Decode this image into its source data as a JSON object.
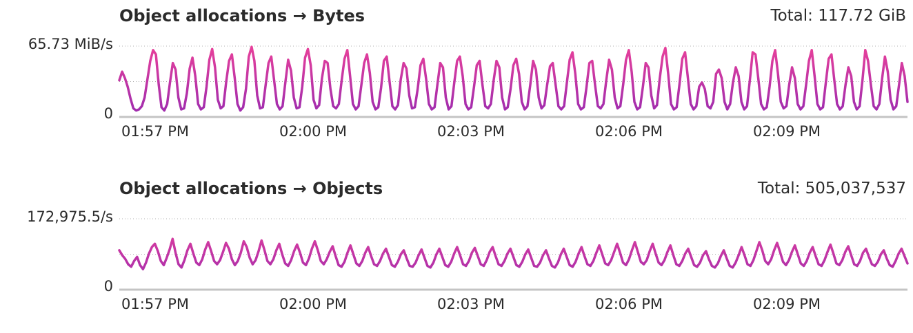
{
  "colors": {
    "line_top": "#e8409a",
    "line_bottom": "#9b2bb0",
    "grid": "#b0b0b0",
    "axis": "#c4c4c4",
    "text": "#2b2b2b"
  },
  "chart_data": [
    {
      "type": "line",
      "title": "Object allocations → Bytes",
      "total_label": "Total: 117.72 GiB",
      "unit": "MiB/s",
      "ymax_label": "65.73 MiB/s",
      "ymin_label": "0",
      "ylim": [
        0,
        65.73
      ],
      "grid": true,
      "x_range": [
        "01:56:30 PM",
        "02:11:30 PM"
      ],
      "x_ticks": [
        "01:57 PM",
        "02:00 PM",
        "02:03 PM",
        "02:06 PM",
        "02:09 PM"
      ],
      "series": [
        {
          "values": [
            34,
            42,
            36,
            28,
            17,
            8,
            6,
            7,
            10,
            18,
            35,
            52,
            62,
            58,
            30,
            9,
            6,
            12,
            32,
            50,
            44,
            18,
            7,
            8,
            22,
            45,
            55,
            38,
            12,
            7,
            9,
            28,
            53,
            63,
            46,
            16,
            8,
            10,
            33,
            52,
            58,
            36,
            12,
            6,
            9,
            26,
            56,
            65,
            52,
            20,
            8,
            9,
            30,
            50,
            56,
            34,
            12,
            7,
            10,
            32,
            53,
            43,
            18,
            8,
            9,
            28,
            55,
            63,
            48,
            16,
            8,
            11,
            36,
            52,
            50,
            26,
            10,
            8,
            12,
            34,
            54,
            62,
            38,
            12,
            7,
            10,
            30,
            50,
            58,
            41,
            14,
            7,
            9,
            27,
            52,
            56,
            33,
            10,
            7,
            11,
            35,
            50,
            45,
            20,
            8,
            9,
            26,
            48,
            54,
            35,
            12,
            7,
            9,
            30,
            50,
            46,
            18,
            7,
            10,
            32,
            52,
            56,
            38,
            12,
            7,
            9,
            28,
            48,
            52,
            30,
            10,
            8,
            12,
            34,
            52,
            46,
            18,
            7,
            9,
            26,
            48,
            54,
            40,
            14,
            7,
            10,
            30,
            52,
            44,
            18,
            8,
            11,
            30,
            47,
            50,
            30,
            10,
            7,
            10,
            32,
            53,
            60,
            40,
            12,
            7,
            9,
            28,
            50,
            52,
            30,
            10,
            8,
            12,
            34,
            53,
            44,
            18,
            8,
            10,
            30,
            53,
            62,
            42,
            14,
            7,
            9,
            28,
            50,
            46,
            20,
            8,
            11,
            36,
            56,
            64,
            40,
            12,
            7,
            9,
            30,
            54,
            60,
            36,
            12,
            7,
            10,
            28,
            32,
            26,
            10,
            8,
            14,
            40,
            44,
            36,
            14,
            7,
            12,
            32,
            46,
            38,
            14,
            7,
            10,
            34,
            60,
            58,
            36,
            12,
            7,
            9,
            28,
            52,
            62,
            40,
            14,
            8,
            10,
            30,
            46,
            36,
            12,
            7,
            10,
            30,
            52,
            62,
            38,
            12,
            7,
            9,
            32,
            54,
            58,
            34,
            12,
            7,
            10,
            30,
            46,
            38,
            14,
            7,
            10,
            34,
            62,
            52,
            30,
            10,
            7,
            12,
            36,
            56,
            42,
            16,
            7,
            10,
            30,
            50,
            38,
            14
          ]
        }
      ]
    },
    {
      "type": "line",
      "title": "Object allocations → Objects",
      "total_label": "Total: 505,037,537",
      "unit": "/s",
      "ymax_label": "172,975.5/s",
      "ymin_label": "0",
      "ylim": [
        0,
        172975.5
      ],
      "grid": true,
      "x_range": [
        "01:56:30 PM",
        "02:11:30 PM"
      ],
      "x_ticks": [
        "01:57 PM",
        "02:00 PM",
        "02:03 PM",
        "02:06 PM",
        "02:09 PM"
      ],
      "series": [
        {
          "values": [
            96000,
            84000,
            75000,
            62000,
            56000,
            70000,
            80000,
            60000,
            50000,
            66000,
            88000,
            104000,
            112000,
            94000,
            70000,
            60000,
            78000,
            98000,
            124000,
            90000,
            62000,
            54000,
            72000,
            96000,
            112000,
            88000,
            66000,
            60000,
            74000,
            98000,
            116000,
            94000,
            70000,
            62000,
            72000,
            92000,
            114000,
            100000,
            74000,
            60000,
            70000,
            90000,
            118000,
            104000,
            78000,
            62000,
            72000,
            94000,
            120000,
            96000,
            70000,
            62000,
            74000,
            96000,
            112000,
            86000,
            64000,
            58000,
            72000,
            94000,
            110000,
            90000,
            66000,
            60000,
            76000,
            100000,
            118000,
            96000,
            70000,
            62000,
            74000,
            92000,
            106000,
            82000,
            60000,
            56000,
            68000,
            90000,
            108000,
            86000,
            64000,
            58000,
            70000,
            90000,
            104000,
            82000,
            62000,
            58000,
            70000,
            88000,
            100000,
            80000,
            60000,
            56000,
            68000,
            86000,
            96000,
            76000,
            58000,
            56000,
            66000,
            84000,
            98000,
            78000,
            58000,
            54000,
            66000,
            86000,
            100000,
            80000,
            60000,
            56000,
            68000,
            88000,
            104000,
            84000,
            62000,
            58000,
            70000,
            90000,
            102000,
            82000,
            62000,
            58000,
            72000,
            92000,
            104000,
            82000,
            62000,
            58000,
            70000,
            88000,
            100000,
            80000,
            60000,
            56000,
            68000,
            86000,
            98000,
            78000,
            58000,
            56000,
            66000,
            84000,
            96000,
            76000,
            58000,
            54000,
            66000,
            86000,
            100000,
            80000,
            60000,
            56000,
            68000,
            88000,
            104000,
            82000,
            62000,
            58000,
            70000,
            90000,
            108000,
            86000,
            64000,
            60000,
            72000,
            92000,
            112000,
            90000,
            66000,
            60000,
            74000,
            96000,
            116000,
            92000,
            68000,
            62000,
            72000,
            94000,
            112000,
            88000,
            66000,
            60000,
            72000,
            92000,
            108000,
            84000,
            62000,
            58000,
            70000,
            88000,
            100000,
            80000,
            60000,
            56000,
            66000,
            84000,
            94000,
            74000,
            58000,
            54000,
            64000,
            82000,
            96000,
            76000,
            58000,
            54000,
            66000,
            84000,
            104000,
            84000,
            62000,
            58000,
            72000,
            94000,
            116000,
            96000,
            70000,
            62000,
            74000,
            96000,
            114000,
            92000,
            68000,
            60000,
            72000,
            92000,
            108000,
            86000,
            64000,
            58000,
            70000,
            90000,
            104000,
            82000,
            62000,
            58000,
            72000,
            92000,
            110000,
            88000,
            64000,
            60000,
            72000,
            92000,
            106000,
            84000,
            62000,
            58000,
            70000,
            90000,
            100000,
            80000,
            62000,
            58000,
            68000,
            86000,
            96000,
            76000,
            60000,
            56000,
            70000,
            88000,
            100000,
            82000,
            64000
          ]
        }
      ]
    }
  ]
}
